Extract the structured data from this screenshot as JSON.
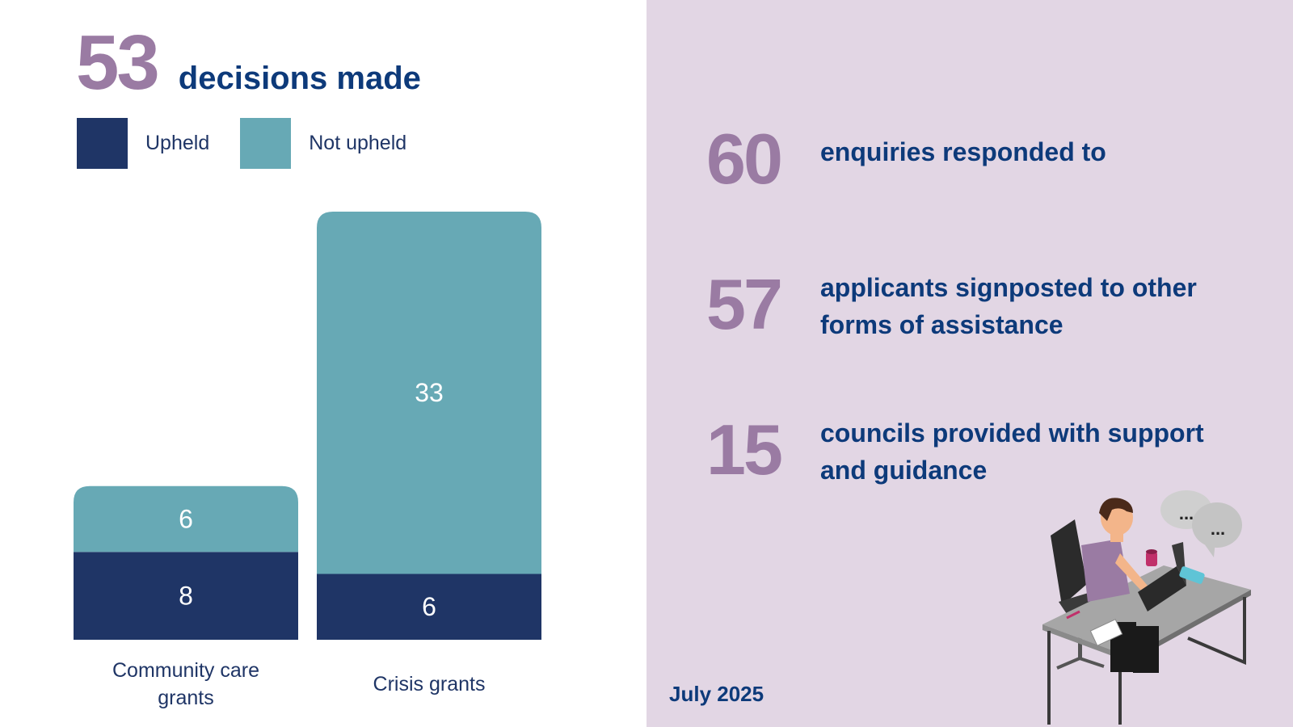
{
  "headline": {
    "value": "53",
    "label": "decisions made"
  },
  "chart_data": {
    "type": "bar",
    "stacked": true,
    "categories": [
      "Community care grants",
      "Crisis grants"
    ],
    "series": [
      {
        "name": "Upheld",
        "values": [
          8,
          6
        ],
        "color": "#1f3566"
      },
      {
        "name": "Not upheld",
        "values": [
          6,
          33
        ],
        "color": "#67a9b5"
      }
    ],
    "legend_position": "top-left",
    "grid": false,
    "ylim": [
      0,
      39
    ]
  },
  "stats": [
    {
      "value": "60",
      "text": "enquiries responded to"
    },
    {
      "value": "57",
      "text": "applicants signposted to other forms of assistance"
    },
    {
      "value": "15",
      "text": "councils provided with support and guidance"
    }
  ],
  "date": "July 2025",
  "illustration": {
    "icon": "person-at-desk-illustration",
    "bubble_text": [
      "...",
      "..."
    ]
  }
}
